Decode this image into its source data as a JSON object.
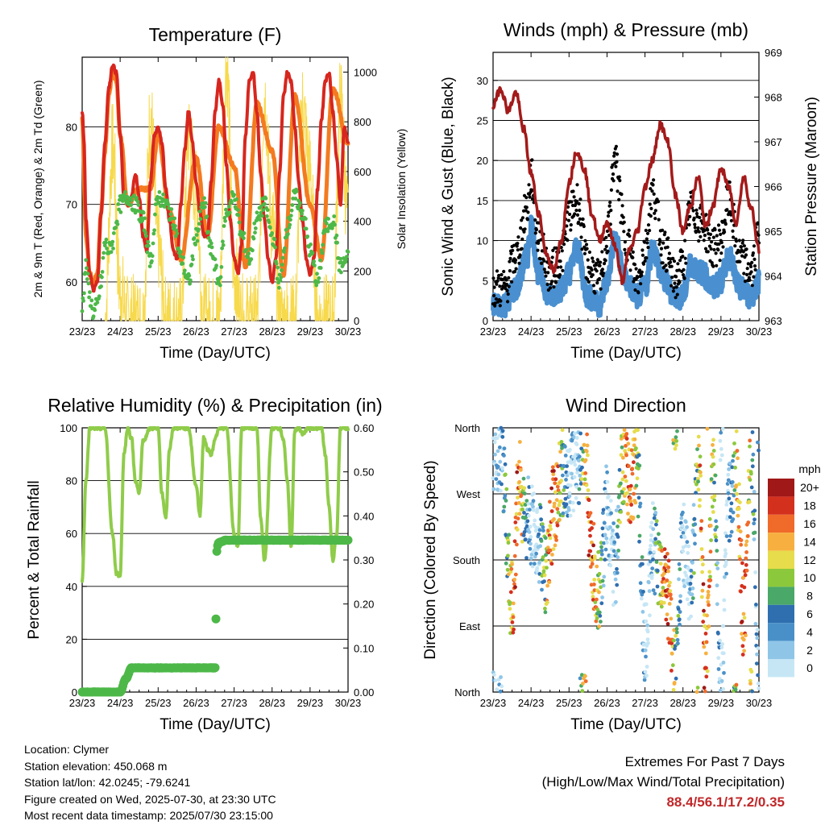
{
  "colors": {
    "temp2m": "#d7261e",
    "temp9m": "#f47a20",
    "dewpoint": "#4db848",
    "solar": "#f7d94c",
    "wind": "#4a90d0",
    "gust": "#000000",
    "pressure": "#a31a1a",
    "rh": "#8fcc4a",
    "precip": "#4db848"
  },
  "x_ticks": [
    "23/23",
    "24/23",
    "25/23",
    "26/23",
    "27/23",
    "28/23",
    "29/23",
    "30/23"
  ],
  "charts": {
    "temperature": {
      "title": "Temperature (F)",
      "xlabel": "Time (Day/UTC)",
      "ylabel": "2m & 9m T (Red, Orange) & 2m Td (Green)",
      "y2label": "Solar Insolation (Yellow)",
      "yticks": [
        "60",
        "70",
        "80"
      ],
      "y2ticks": [
        "0",
        "200",
        "400",
        "600",
        "800",
        "1000"
      ]
    },
    "winds": {
      "title": "Winds (mph) & Pressure (mb)",
      "xlabel": "Time (Day/UTC)",
      "ylabel": "Sonic Wind & Gust (Blue, Black)",
      "y2label": "Station Pressure (Maroon)",
      "yticks": [
        "0",
        "5",
        "10",
        "15",
        "20",
        "25",
        "30"
      ],
      "y2ticks": [
        "963",
        "964",
        "965",
        "966",
        "967",
        "968",
        "969"
      ]
    },
    "humidity": {
      "title": "Relative Humidity (%) & Precipitation (in)",
      "xlabel": "Time (Day/UTC)",
      "ylabel": "Percent & Total Rainfall",
      "yticks": [
        "0",
        "20",
        "40",
        "60",
        "80",
        "100"
      ],
      "y2ticks": [
        "0.00",
        "0.10",
        "0.20",
        "0.30",
        "0.40",
        "0.50",
        "0.60"
      ]
    },
    "direction": {
      "title": "Wind Direction",
      "xlabel": "Time (Day/UTC)",
      "ylabel": "Direction (Colored By Speed)",
      "yticks": [
        "North",
        "East",
        "South",
        "West",
        "North"
      ],
      "legend_title": "mph",
      "legend_labels": [
        "0",
        "2",
        "4",
        "6",
        "8",
        "10",
        "12",
        "14",
        "16",
        "18",
        "20+"
      ],
      "legend_colors": [
        "#c6e6f5",
        "#8fc6e8",
        "#4a90c8",
        "#2f6fb0",
        "#4aa868",
        "#8cc83c",
        "#e6dc4c",
        "#f7b040",
        "#f06a2a",
        "#d4301e",
        "#a01818"
      ]
    }
  },
  "chart_data": [
    {
      "type": "line",
      "title": "Temperature (F)",
      "xlabel": "Time (Day/UTC)",
      "ylabel": "2m & 9m T (Red, Orange) & 2m Td (Green)",
      "y2label": "Solar Insolation (Yellow)",
      "x": [
        "23/23",
        "24/23",
        "25/23",
        "26/23",
        "27/23",
        "28/23",
        "29/23",
        "30/23"
      ],
      "ylim": [
        55,
        89
      ],
      "y2lim": [
        0,
        1060
      ],
      "series": [
        {
          "x": [
            0,
            0.05,
            0.1,
            0.2,
            0.3,
            0.4,
            0.5,
            0.6,
            0.7,
            0.8,
            0.9,
            1.0,
            1.1,
            1.2,
            1.3,
            1.4,
            1.5,
            1.6,
            1.7,
            1.8,
            1.9,
            2.0,
            2.1,
            2.2,
            2.3,
            2.4,
            2.5,
            2.6,
            2.7,
            2.8,
            2.9,
            3.0,
            3.1,
            3.2,
            3.3,
            3.4,
            3.5,
            3.6,
            3.7,
            3.8,
            3.9,
            4.0,
            4.1,
            4.2,
            4.3,
            4.4,
            4.5,
            4.6,
            4.7,
            4.8,
            4.9,
            5.0,
            5.1,
            5.2,
            5.3,
            5.4,
            5.5,
            5.6,
            5.7,
            5.8,
            5.9,
            6.0,
            6.1,
            6.2,
            6.3,
            6.4,
            6.5,
            6.6,
            6.7,
            6.8,
            6.9,
            7.0
          ],
          "values": [
            82,
            78,
            68,
            61,
            59,
            60,
            69,
            78,
            85,
            88,
            87,
            79,
            71,
            70,
            71,
            74,
            71,
            66,
            64,
            73,
            79,
            80,
            78,
            72,
            68,
            64,
            63,
            70,
            77,
            82,
            78,
            73,
            69,
            66,
            66,
            73,
            82,
            86,
            83,
            75,
            68,
            63,
            61,
            65,
            79,
            86,
            87,
            82,
            74,
            68,
            63,
            60,
            63,
            74,
            84,
            87,
            86,
            80,
            73,
            68,
            63,
            61,
            63,
            72,
            81,
            86,
            87,
            82,
            76,
            70,
            80,
            78
          ]
        },
        {
          "x": [
            0,
            0.1,
            0.2,
            0.3,
            0.4,
            0.5,
            0.6,
            0.7,
            0.8,
            0.9,
            1.0,
            1.2,
            1.5,
            1.8,
            2.0,
            2.3,
            2.6,
            3.0,
            3.3,
            3.6,
            4.0,
            4.3,
            4.6,
            5.0,
            5.3,
            5.6,
            6.0,
            6.3,
            6.6,
            7.0
          ],
          "values": [
            81,
            66,
            61,
            60,
            61,
            69,
            77,
            84,
            87,
            86,
            79,
            70,
            72,
            72,
            79,
            69,
            63,
            76,
            66,
            80,
            75,
            62,
            83,
            77,
            61,
            84,
            70,
            63,
            85,
            78
          ]
        },
        {
          "x": [
            0,
            0.1,
            0.2,
            0.3,
            0.4,
            0.5,
            0.6,
            0.7,
            0.8,
            0.9,
            1.0,
            1.2,
            1.4,
            1.6,
            1.8,
            2.0,
            2.2,
            2.4,
            2.6,
            2.8,
            3.0,
            3.2,
            3.4,
            3.6,
            3.8,
            4.0,
            4.2,
            4.4,
            4.6,
            4.8,
            5.0,
            5.2,
            5.4,
            5.6,
            5.8,
            6.0,
            6.2,
            6.4,
            6.6,
            6.8,
            7.0
          ],
          "values": [
            57,
            62,
            58,
            56,
            57,
            60,
            65,
            64,
            65,
            68,
            70,
            71,
            70,
            68,
            63,
            71,
            70,
            68,
            63,
            60,
            66,
            70,
            64,
            60,
            69,
            71,
            66,
            63,
            68,
            70,
            66,
            60,
            67,
            71,
            69,
            64,
            60,
            67,
            68,
            62,
            63
          ]
        },
        {
          "x": [
            0.6,
            0.8,
            1.0,
            1.2,
            1.6,
            1.8,
            2.0,
            2.2,
            2.6,
            2.8,
            3.0,
            3.2,
            3.6,
            3.8,
            4.0,
            4.2,
            4.6,
            4.8,
            5.0,
            5.2,
            5.6,
            5.8,
            6.0,
            6.2,
            6.6,
            6.8,
            7.0
          ],
          "values": [
            0,
            700,
            120,
            0,
            0,
            820,
            300,
            0,
            0,
            750,
            500,
            0,
            0,
            1040,
            200,
            0,
            0,
            900,
            400,
            0,
            0,
            860,
            600,
            0,
            0,
            880,
            400
          ]
        }
      ]
    },
    {
      "type": "line",
      "title": "Winds (mph) & Pressure (mb)",
      "xlabel": "Time (Day/UTC)",
      "ylabel": "Sonic Wind & Gust (Blue, Black)",
      "y2label": "Station Pressure (Maroon)",
      "x": [
        "23/23",
        "24/23",
        "25/23",
        "26/23",
        "27/23",
        "28/23",
        "29/23",
        "30/23"
      ],
      "ylim": [
        0,
        33.5
      ],
      "y2lim": [
        963,
        969
      ],
      "series": [
        {
          "x": [
            0,
            0.3,
            0.6,
            0.9,
            1.0,
            1.2,
            1.5,
            1.8,
            2.0,
            2.2,
            2.5,
            2.8,
            3.0,
            3.2,
            3.5,
            3.8,
            4.0,
            4.2,
            4.5,
            4.8,
            5.0,
            5.2,
            5.5,
            5.8,
            6.0,
            6.2,
            6.5,
            6.8,
            7.0
          ],
          "values": [
            2,
            2,
            4,
            8,
            12,
            6,
            3,
            4,
            6,
            9,
            3,
            2,
            5,
            10,
            5,
            3,
            4,
            9,
            5,
            3,
            3,
            7,
            6,
            4,
            5,
            8,
            4,
            3,
            5
          ]
        },
        {
          "x": [
            0,
            0.3,
            0.6,
            0.9,
            1.0,
            1.2,
            1.5,
            1.8,
            2.0,
            2.2,
            2.5,
            2.8,
            3.0,
            3.2,
            3.5,
            3.8,
            4.0,
            4.2,
            4.5,
            4.8,
            5.0,
            5.2,
            5.5,
            5.8,
            6.0,
            6.2,
            6.5,
            6.8,
            7.0
          ],
          "values": [
            4,
            4,
            8,
            14,
            18,
            10,
            6,
            8,
            13,
            15,
            7,
            5,
            10,
            20,
            10,
            5,
            9,
            16,
            9,
            5,
            7,
            14,
            12,
            9,
            10,
            15,
            8,
            6,
            11
          ]
        },
        {
          "x": [
            0,
            0.2,
            0.4,
            0.6,
            0.8,
            1.0,
            1.2,
            1.4,
            1.6,
            1.8,
            2.0,
            2.2,
            2.4,
            2.6,
            2.8,
            3.0,
            3.2,
            3.4,
            3.6,
            3.8,
            4.0,
            4.2,
            4.4,
            4.6,
            4.8,
            5.0,
            5.2,
            5.4,
            5.6,
            5.8,
            6.0,
            6.2,
            6.4,
            6.6,
            6.8,
            7.0
          ],
          "values": [
            967.8,
            968.2,
            967.7,
            968.1,
            967.3,
            966.3,
            965.4,
            964.5,
            964.1,
            964.8,
            966.1,
            966.8,
            966.4,
            965.4,
            964.8,
            965.2,
            964.7,
            963.9,
            964.6,
            965.0,
            966.0,
            966.6,
            967.4,
            967.0,
            965.8,
            965.0,
            965.6,
            966.2,
            965.1,
            965.6,
            966.4,
            966.0,
            965.2,
            966.2,
            965.5,
            964.6
          ]
        }
      ]
    },
    {
      "type": "line",
      "title": "Relative Humidity (%) & Precipitation (in)",
      "xlabel": "Time (Day/UTC)",
      "ylabel": "Percent & Total Rainfall",
      "x": [
        "23/23",
        "24/23",
        "25/23",
        "26/23",
        "27/23",
        "28/23",
        "29/23",
        "30/23"
      ],
      "ylim": [
        0,
        100
      ],
      "y2lim": [
        0.0,
        0.6
      ],
      "series": [
        {
          "x": [
            0,
            0.1,
            0.2,
            0.3,
            0.4,
            0.6,
            0.8,
            0.9,
            1.0,
            1.1,
            1.2,
            1.3,
            1.4,
            1.5,
            1.6,
            1.8,
            2.0,
            2.1,
            2.2,
            2.3,
            2.4,
            2.5,
            2.6,
            2.8,
            3.0,
            3.1,
            3.2,
            3.3,
            3.4,
            3.5,
            3.6,
            3.7,
            3.8,
            4.0,
            4.1,
            4.2,
            4.3,
            4.4,
            4.5,
            4.6,
            4.7,
            4.8,
            5.0,
            5.1,
            5.2,
            5.3,
            5.4,
            5.5,
            5.6,
            5.7,
            5.8,
            6.0,
            6.1,
            6.2,
            6.3,
            6.4,
            6.5,
            6.6,
            6.7,
            6.8,
            7.0
          ],
          "values": [
            42,
            80,
            100,
            100,
            100,
            100,
            60,
            45,
            44,
            90,
            100,
            96,
            80,
            75,
            95,
            100,
            100,
            75,
            66,
            92,
            100,
            100,
            100,
            100,
            78,
            67,
            96,
            92,
            90,
            96,
            100,
            100,
            100,
            60,
            55,
            100,
            100,
            100,
            100,
            100,
            66,
            50,
            100,
            100,
            100,
            95,
            80,
            55,
            99,
            100,
            98,
            100,
            100,
            100,
            100,
            90,
            70,
            50,
            60,
            100,
            100
          ]
        },
        {
          "x": [
            0,
            1.0,
            1.15,
            1.3,
            3.5,
            3.55,
            3.6,
            3.8,
            4.5,
            5.0,
            6.0,
            7.0
          ],
          "values": [
            0,
            0,
            0.03,
            0.055,
            0.055,
            0.33,
            0.34,
            0.345,
            0.345,
            0.345,
            0.345,
            0.345
          ]
        }
      ]
    },
    {
      "type": "scatter",
      "title": "Wind Direction",
      "xlabel": "Time (Day/UTC)",
      "ylabel": "Direction (Colored By Speed)",
      "x": [
        "23/23",
        "24/23",
        "25/23",
        "26/23",
        "27/23",
        "28/23",
        "29/23",
        "30/23"
      ],
      "y_categories": [
        "North",
        "East",
        "South",
        "West",
        "North"
      ],
      "legend_title": "mph",
      "series": [
        {
          "x": [
            0.2,
            0.5,
            0.7,
            0.8,
            1.0,
            1.2,
            1.4,
            1.6,
            1.8,
            2.0,
            2.2,
            2.4,
            2.6,
            2.8,
            3.0,
            3.2,
            3.4,
            3.6,
            3.8,
            4.0,
            4.2,
            4.4,
            4.6,
            4.8,
            5.0,
            5.2,
            5.4,
            5.6,
            5.8,
            6.0,
            6.2,
            6.4,
            6.6,
            6.8,
            7.0
          ],
          "values": [
            330,
            120,
            300,
            240,
            230,
            200,
            160,
            250,
            300,
            290,
            310,
            340,
            180,
            140,
            250,
            170,
            310,
            290,
            300,
            60,
            200,
            160,
            130,
            20,
            210,
            140,
            320,
            30,
            300,
            0,
            250,
            320,
            100,
            340,
            10
          ]
        }
      ]
    }
  ],
  "info": [
    "Location: Clymer",
    "Station elevation: 450.068 m",
    "Station lat/lon: 42.0245; -79.6241",
    "Figure created on Wed, 2025-07-30, at 23:30 UTC",
    "Most recent data timestamp: 2025/07/30 23:15:00"
  ],
  "extremes": {
    "line1": "Extremes For Past 7 Days",
    "line2": "(High/Low/Max Wind/Total Precipitation)",
    "values": "88.4/56.1/17.2/0.35"
  }
}
